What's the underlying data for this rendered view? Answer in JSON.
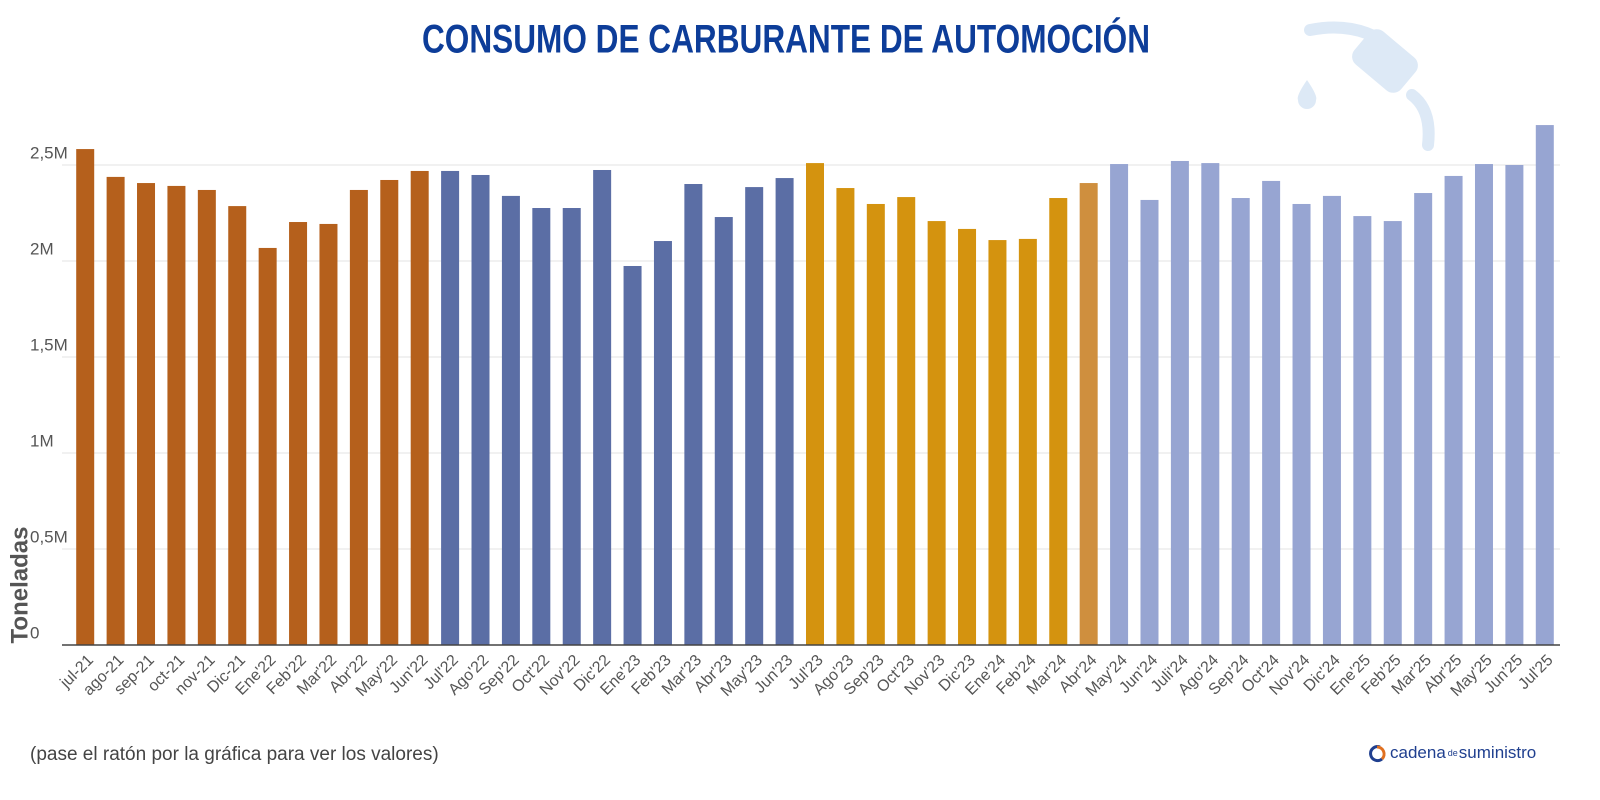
{
  "chart_data": {
    "type": "bar",
    "title": "CONSUMO DE CARBURANTE DE AUTOMOCIÓN",
    "y_label": "Toneladas",
    "note": "(pase el ratón por la gráfica para ver los valores)",
    "brand": {
      "first": "cadena",
      "middle": "de",
      "last": "suministro"
    },
    "categories": [
      "jul-21",
      "ago-21",
      "sep-21",
      "oct-21",
      "nov-21",
      "Dic-21",
      "Ene'22",
      "Feb'22",
      "Mar'22",
      "Abr'22",
      "May'22",
      "Jun'22",
      "Jul'22",
      "Ago'22",
      "Sep'22",
      "Oct'22",
      "Nov'22",
      "Dic'22",
      "Ene'23",
      "Feb'23",
      "Mar'23",
      "Abr'23",
      "May'23",
      "Jun'23",
      "Jul'23",
      "Ago'23",
      "Sep'23",
      "Oct'23",
      "Nov'23",
      "Dic'23",
      "Ene'24",
      "Feb'24",
      "Mar'24",
      "Abr'24",
      "May'24",
      "Jun'24",
      "Juli'24",
      "Ago'24",
      "Sep'24",
      "Oct'24",
      "Nov'24",
      "Dic'24",
      "Ene'25",
      "Feb'25",
      "Mar'25",
      "Abr'25",
      "May'25",
      "Jun'25",
      "Jul'25"
    ],
    "values": [
      2583000,
      2438000,
      2406000,
      2391000,
      2370000,
      2286000,
      2068000,
      2203000,
      2193000,
      2370000,
      2422000,
      2469000,
      2469000,
      2448000,
      2339000,
      2276000,
      2276000,
      2474000,
      1974000,
      2104000,
      2401000,
      2229000,
      2385000,
      2432000,
      2510000,
      2380000,
      2297000,
      2333000,
      2208000,
      2167000,
      2109000,
      2115000,
      2328000,
      2406000,
      2505000,
      2318000,
      2521000,
      2510000,
      2328000,
      2417000,
      2297000,
      2339000,
      2234000,
      2208000,
      2354000,
      2443000,
      2505000,
      2500000,
      2708000
    ],
    "colors": [
      "#b5601c",
      "#b5601c",
      "#b5601c",
      "#b5601c",
      "#b5601c",
      "#b5601c",
      "#b5601c",
      "#b5601c",
      "#b5601c",
      "#b5601c",
      "#b5601c",
      "#b5601c",
      "#5b6ea5",
      "#5b6ea5",
      "#5b6ea5",
      "#5b6ea5",
      "#5b6ea5",
      "#5b6ea5",
      "#5b6ea5",
      "#5b6ea5",
      "#5b6ea5",
      "#5b6ea5",
      "#5b6ea5",
      "#5b6ea5",
      "#d4930f",
      "#d4930f",
      "#d4930f",
      "#d4930f",
      "#d4930f",
      "#d4930f",
      "#d4930f",
      "#d4930f",
      "#d4930f",
      "#cf8f3e",
      "#97a5d2",
      "#97a5d2",
      "#97a5d2",
      "#97a5d2",
      "#97a5d2",
      "#97a5d2",
      "#97a5d2",
      "#97a5d2",
      "#97a5d2",
      "#97a5d2",
      "#97a5d2",
      "#97a5d2",
      "#97a5d2",
      "#97a5d2",
      "#97a5d2"
    ],
    "ylim": [
      0,
      2750000
    ],
    "yticks": [
      0,
      {
        "value": 500000,
        "label": "0,5M"
      },
      {
        "value": 1000000,
        "label": "1M"
      },
      {
        "value": 1500000,
        "label": "1,5M"
      },
      {
        "value": 2000000,
        "label": "2M"
      },
      {
        "value": 2500000,
        "label": "2,5M"
      }
    ],
    "grid": true
  }
}
